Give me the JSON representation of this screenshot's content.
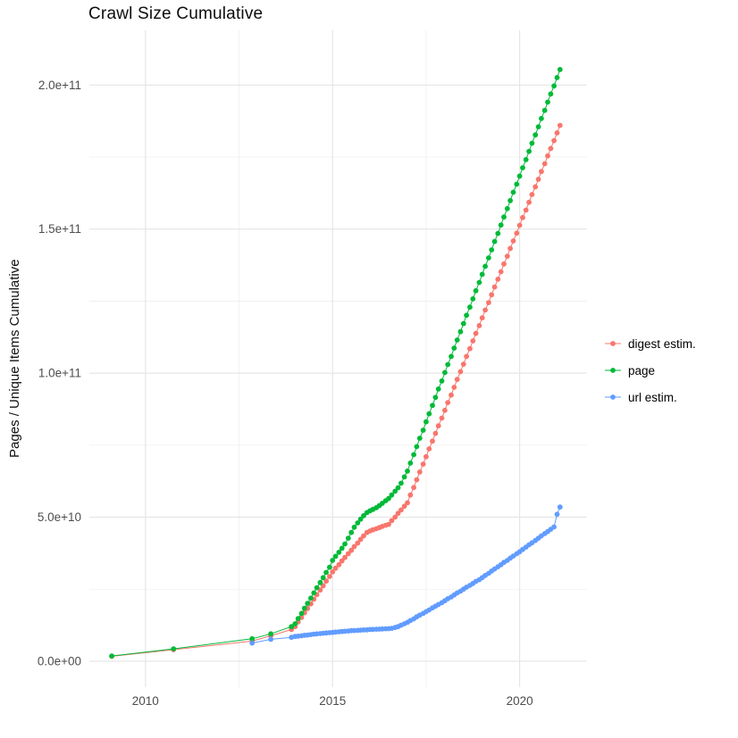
{
  "page": {
    "background": "#ffffff"
  },
  "chart_data": {
    "type": "scatter",
    "title": "Crawl Size Cumulative",
    "xlabel": "",
    "ylabel": "Pages / Unique Items Cumulative",
    "legend_position": "right",
    "grid": {
      "major_color": "#e4e4e4",
      "minor_color": "#efefef",
      "background": "#ffffff"
    },
    "y_values_unit": "1e9",
    "x_domain": [
      2008.5,
      2021.8
    ],
    "y_domain": [
      -9,
      219
    ],
    "x_ticks": [
      {
        "value": 2010,
        "label": "2010"
      },
      {
        "value": 2015,
        "label": "2015"
      },
      {
        "value": 2020,
        "label": "2020"
      }
    ],
    "x_minor": [
      2012.5,
      2017.5
    ],
    "y_ticks": [
      {
        "value": 0,
        "label": "0.0e+00"
      },
      {
        "value": 50,
        "label": "5.0e+10"
      },
      {
        "value": 100,
        "label": "1.0e+11"
      },
      {
        "value": 150,
        "label": "1.5e+11"
      },
      {
        "value": 200,
        "label": "2.0e+11"
      }
    ],
    "y_minor": [
      25,
      75,
      125,
      175
    ],
    "series": [
      {
        "name": "digest estim.",
        "color": "#F8766D",
        "points": [
          [
            2009.1,
            1.7
          ],
          [
            2010.75,
            4.0
          ],
          [
            2012.85,
            7.0
          ],
          [
            2013.35,
            8.8
          ],
          [
            2013.9,
            11.0
          ],
          [
            2014.0,
            12.0
          ],
          [
            2014.08,
            13.6
          ],
          [
            2014.17,
            15.2
          ],
          [
            2014.25,
            16.8
          ],
          [
            2014.33,
            18.3
          ],
          [
            2014.42,
            19.9
          ],
          [
            2014.5,
            21.5
          ],
          [
            2014.58,
            23.1
          ],
          [
            2014.67,
            24.7
          ],
          [
            2014.75,
            26.2
          ],
          [
            2014.83,
            27.8
          ],
          [
            2014.92,
            29.4
          ],
          [
            2015.0,
            31.0
          ],
          [
            2015.08,
            32.3
          ],
          [
            2015.17,
            33.5
          ],
          [
            2015.25,
            34.8
          ],
          [
            2015.33,
            36.0
          ],
          [
            2015.42,
            37.3
          ],
          [
            2015.5,
            38.5
          ],
          [
            2015.58,
            39.8
          ],
          [
            2015.67,
            41.0
          ],
          [
            2015.75,
            42.3
          ],
          [
            2015.83,
            43.5
          ],
          [
            2015.92,
            44.7
          ],
          [
            2016.0,
            45.2
          ],
          [
            2016.08,
            45.6
          ],
          [
            2016.17,
            46.0
          ],
          [
            2016.25,
            46.4
          ],
          [
            2016.33,
            46.8
          ],
          [
            2016.42,
            47.2
          ],
          [
            2016.5,
            47.5
          ],
          [
            2016.58,
            48.8
          ],
          [
            2016.67,
            50.0
          ],
          [
            2016.75,
            51.3
          ],
          [
            2016.83,
            52.5
          ],
          [
            2016.92,
            53.8
          ],
          [
            2017.0,
            55.0
          ],
          [
            2017.08,
            57.7
          ],
          [
            2017.17,
            60.3
          ],
          [
            2017.25,
            63.0
          ],
          [
            2017.33,
            65.7
          ],
          [
            2017.42,
            68.4
          ],
          [
            2017.5,
            71.0
          ],
          [
            2017.58,
            73.7
          ],
          [
            2017.67,
            76.4
          ],
          [
            2017.75,
            79.1
          ],
          [
            2017.83,
            81.7
          ],
          [
            2017.92,
            84.4
          ],
          [
            2018.0,
            87.1
          ],
          [
            2018.08,
            89.8
          ],
          [
            2018.17,
            92.4
          ],
          [
            2018.25,
            95.1
          ],
          [
            2018.33,
            97.8
          ],
          [
            2018.42,
            100.5
          ],
          [
            2018.5,
            103.1
          ],
          [
            2018.58,
            105.8
          ],
          [
            2018.67,
            108.5
          ],
          [
            2018.75,
            111.2
          ],
          [
            2018.83,
            113.8
          ],
          [
            2018.92,
            116.5
          ],
          [
            2019.0,
            119.2
          ],
          [
            2019.08,
            121.9
          ],
          [
            2019.17,
            124.5
          ],
          [
            2019.25,
            127.2
          ],
          [
            2019.33,
            129.9
          ],
          [
            2019.42,
            132.6
          ],
          [
            2019.5,
            135.2
          ],
          [
            2019.58,
            137.9
          ],
          [
            2019.67,
            140.6
          ],
          [
            2019.75,
            143.3
          ],
          [
            2019.83,
            145.9
          ],
          [
            2019.92,
            148.6
          ],
          [
            2020.0,
            151.3
          ],
          [
            2020.08,
            154.0
          ],
          [
            2020.17,
            156.6
          ],
          [
            2020.25,
            159.3
          ],
          [
            2020.33,
            162.0
          ],
          [
            2020.42,
            164.7
          ],
          [
            2020.5,
            167.3
          ],
          [
            2020.58,
            170.0
          ],
          [
            2020.67,
            172.7
          ],
          [
            2020.75,
            175.4
          ],
          [
            2020.83,
            178.0
          ],
          [
            2020.92,
            180.7
          ],
          [
            2021.0,
            183.4
          ],
          [
            2021.08,
            186.0
          ]
        ]
      },
      {
        "name": "page",
        "color": "#00BA38",
        "points": [
          [
            2009.1,
            1.8
          ],
          [
            2010.75,
            4.3
          ],
          [
            2012.85,
            7.8
          ],
          [
            2013.35,
            9.5
          ],
          [
            2013.9,
            12.0
          ],
          [
            2014.0,
            13.0
          ],
          [
            2014.08,
            14.8
          ],
          [
            2014.17,
            16.6
          ],
          [
            2014.25,
            18.4
          ],
          [
            2014.33,
            20.1
          ],
          [
            2014.42,
            21.9
          ],
          [
            2014.5,
            23.7
          ],
          [
            2014.58,
            25.5
          ],
          [
            2014.67,
            27.3
          ],
          [
            2014.75,
            29.0
          ],
          [
            2014.83,
            30.8
          ],
          [
            2014.92,
            32.6
          ],
          [
            2015.0,
            35.0
          ],
          [
            2015.08,
            36.4
          ],
          [
            2015.17,
            37.8
          ],
          [
            2015.25,
            39.2
          ],
          [
            2015.33,
            40.7
          ],
          [
            2015.42,
            42.7
          ],
          [
            2015.5,
            44.7
          ],
          [
            2015.58,
            46.5
          ],
          [
            2015.67,
            48.0
          ],
          [
            2015.75,
            49.3
          ],
          [
            2015.83,
            50.5
          ],
          [
            2015.92,
            51.6
          ],
          [
            2016.0,
            52.2
          ],
          [
            2016.08,
            52.7
          ],
          [
            2016.17,
            53.3
          ],
          [
            2016.25,
            54.0
          ],
          [
            2016.33,
            54.8
          ],
          [
            2016.42,
            55.7
          ],
          [
            2016.5,
            56.5
          ],
          [
            2016.58,
            57.7
          ],
          [
            2016.67,
            59.0
          ],
          [
            2016.75,
            60.2
          ],
          [
            2016.83,
            61.8
          ],
          [
            2016.92,
            64.0
          ],
          [
            2017.0,
            66.0
          ],
          [
            2017.08,
            68.8
          ],
          [
            2017.17,
            71.7
          ],
          [
            2017.25,
            74.5
          ],
          [
            2017.33,
            77.4
          ],
          [
            2017.42,
            80.2
          ],
          [
            2017.5,
            83.1
          ],
          [
            2017.58,
            85.9
          ],
          [
            2017.67,
            88.8
          ],
          [
            2017.75,
            91.6
          ],
          [
            2017.83,
            94.5
          ],
          [
            2017.92,
            97.3
          ],
          [
            2018.0,
            100.2
          ],
          [
            2018.08,
            103.0
          ],
          [
            2018.17,
            105.8
          ],
          [
            2018.25,
            108.7
          ],
          [
            2018.33,
            111.5
          ],
          [
            2018.42,
            114.4
          ],
          [
            2018.5,
            117.2
          ],
          [
            2018.58,
            120.1
          ],
          [
            2018.67,
            122.9
          ],
          [
            2018.75,
            125.8
          ],
          [
            2018.83,
            128.6
          ],
          [
            2018.92,
            131.5
          ],
          [
            2019.0,
            134.3
          ],
          [
            2019.08,
            137.1
          ],
          [
            2019.17,
            140.0
          ],
          [
            2019.25,
            142.8
          ],
          [
            2019.33,
            145.7
          ],
          [
            2019.42,
            148.5
          ],
          [
            2019.5,
            151.4
          ],
          [
            2019.58,
            154.2
          ],
          [
            2019.67,
            157.1
          ],
          [
            2019.75,
            159.9
          ],
          [
            2019.83,
            162.8
          ],
          [
            2019.92,
            165.6
          ],
          [
            2020.0,
            168.4
          ],
          [
            2020.08,
            171.3
          ],
          [
            2020.17,
            174.1
          ],
          [
            2020.25,
            177.0
          ],
          [
            2020.33,
            179.8
          ],
          [
            2020.42,
            182.7
          ],
          [
            2020.5,
            185.5
          ],
          [
            2020.58,
            188.4
          ],
          [
            2020.67,
            191.2
          ],
          [
            2020.75,
            194.1
          ],
          [
            2020.83,
            196.9
          ],
          [
            2020.92,
            199.7
          ],
          [
            2021.0,
            202.6
          ],
          [
            2021.08,
            205.4
          ]
        ]
      },
      {
        "name": "url estim.",
        "color": "#619CFF",
        "points": [
          [
            2012.85,
            6.3
          ],
          [
            2013.35,
            7.6
          ],
          [
            2013.9,
            8.3
          ],
          [
            2014.0,
            8.6
          ],
          [
            2014.08,
            8.7
          ],
          [
            2014.17,
            8.85
          ],
          [
            2014.25,
            9.0
          ],
          [
            2014.33,
            9.1
          ],
          [
            2014.42,
            9.25
          ],
          [
            2014.5,
            9.4
          ],
          [
            2014.58,
            9.5
          ],
          [
            2014.67,
            9.6
          ],
          [
            2014.75,
            9.7
          ],
          [
            2014.83,
            9.8
          ],
          [
            2014.92,
            9.9
          ],
          [
            2015.0,
            10.0
          ],
          [
            2015.08,
            10.1
          ],
          [
            2015.17,
            10.2
          ],
          [
            2015.25,
            10.3
          ],
          [
            2015.33,
            10.4
          ],
          [
            2015.42,
            10.5
          ],
          [
            2015.5,
            10.6
          ],
          [
            2015.58,
            10.65
          ],
          [
            2015.67,
            10.7
          ],
          [
            2015.75,
            10.8
          ],
          [
            2015.83,
            10.85
          ],
          [
            2015.92,
            10.9
          ],
          [
            2016.0,
            11.0
          ],
          [
            2016.08,
            11.05
          ],
          [
            2016.17,
            11.1
          ],
          [
            2016.25,
            11.15
          ],
          [
            2016.33,
            11.2
          ],
          [
            2016.42,
            11.25
          ],
          [
            2016.5,
            11.3
          ],
          [
            2016.58,
            11.4
          ],
          [
            2016.67,
            11.7
          ],
          [
            2016.75,
            12.0
          ],
          [
            2016.83,
            12.5
          ],
          [
            2016.92,
            13.0
          ],
          [
            2017.0,
            13.5
          ],
          [
            2017.08,
            14.1
          ],
          [
            2017.17,
            14.7
          ],
          [
            2017.25,
            15.4
          ],
          [
            2017.33,
            16.0
          ],
          [
            2017.42,
            16.6
          ],
          [
            2017.5,
            17.2
          ],
          [
            2017.58,
            17.8
          ],
          [
            2017.67,
            18.5
          ],
          [
            2017.75,
            19.1
          ],
          [
            2017.83,
            19.7
          ],
          [
            2017.92,
            20.3
          ],
          [
            2018.0,
            21.0
          ],
          [
            2018.08,
            21.7
          ],
          [
            2018.17,
            22.3
          ],
          [
            2018.25,
            23.0
          ],
          [
            2018.33,
            23.7
          ],
          [
            2018.42,
            24.3
          ],
          [
            2018.5,
            25.0
          ],
          [
            2018.58,
            25.7
          ],
          [
            2018.67,
            26.3
          ],
          [
            2018.75,
            27.0
          ],
          [
            2018.83,
            27.7
          ],
          [
            2018.92,
            28.3
          ],
          [
            2019.0,
            29.0
          ],
          [
            2019.08,
            29.8
          ],
          [
            2019.17,
            30.5
          ],
          [
            2019.25,
            31.3
          ],
          [
            2019.33,
            32.0
          ],
          [
            2019.42,
            32.8
          ],
          [
            2019.5,
            33.5
          ],
          [
            2019.58,
            34.3
          ],
          [
            2019.67,
            35.0
          ],
          [
            2019.75,
            35.8
          ],
          [
            2019.83,
            36.5
          ],
          [
            2019.92,
            37.3
          ],
          [
            2020.0,
            38.0
          ],
          [
            2020.08,
            38.8
          ],
          [
            2020.17,
            39.6
          ],
          [
            2020.25,
            40.4
          ],
          [
            2020.33,
            41.1
          ],
          [
            2020.42,
            41.9
          ],
          [
            2020.5,
            42.7
          ],
          [
            2020.58,
            43.5
          ],
          [
            2020.67,
            44.3
          ],
          [
            2020.75,
            45.0
          ],
          [
            2020.83,
            45.8
          ],
          [
            2020.92,
            46.6
          ],
          [
            2021.0,
            51.0
          ],
          [
            2021.08,
            53.5
          ]
        ]
      }
    ]
  }
}
